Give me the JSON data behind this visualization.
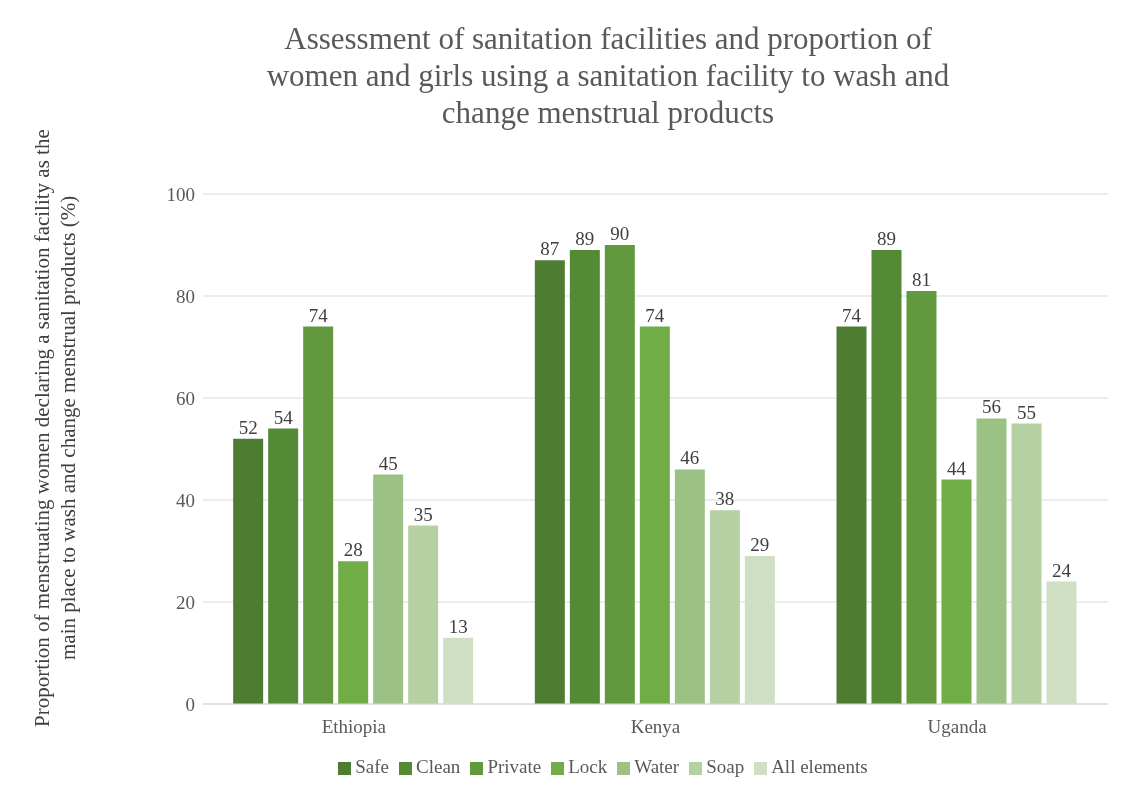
{
  "chart_data": {
    "type": "bar",
    "title": "Assessment of sanitation facilities and proportion of women and girls using a sanitation facility to wash and change menstrual products",
    "ylabel": "Proportion of menstruating women declaring a sanitation facility as the main place to wash and change menstrual products (%)",
    "categories": [
      "Ethiopia",
      "Kenya",
      "Uganda"
    ],
    "series": [
      {
        "name": "Safe",
        "color": "#4e7d32",
        "values": [
          52,
          87,
          74
        ]
      },
      {
        "name": "Clean",
        "color": "#548a36",
        "values": [
          54,
          89,
          89
        ]
      },
      {
        "name": "Private",
        "color": "#62993e",
        "values": [
          74,
          90,
          81
        ]
      },
      {
        "name": "Lock",
        "color": "#70ad47",
        "values": [
          28,
          74,
          44
        ]
      },
      {
        "name": "Water",
        "color": "#9bc284",
        "values": [
          45,
          46,
          56
        ]
      },
      {
        "name": "Soap",
        "color": "#b5d1a4",
        "values": [
          35,
          38,
          55
        ]
      },
      {
        "name": "All elements",
        "color": "#cfdfc4",
        "values": [
          13,
          29,
          24
        ]
      }
    ],
    "ylim": [
      0,
      100
    ],
    "yticks": [
      0,
      20,
      40,
      60,
      80,
      100
    ],
    "grid": "y",
    "legend": "bottom",
    "data_labels": true
  }
}
